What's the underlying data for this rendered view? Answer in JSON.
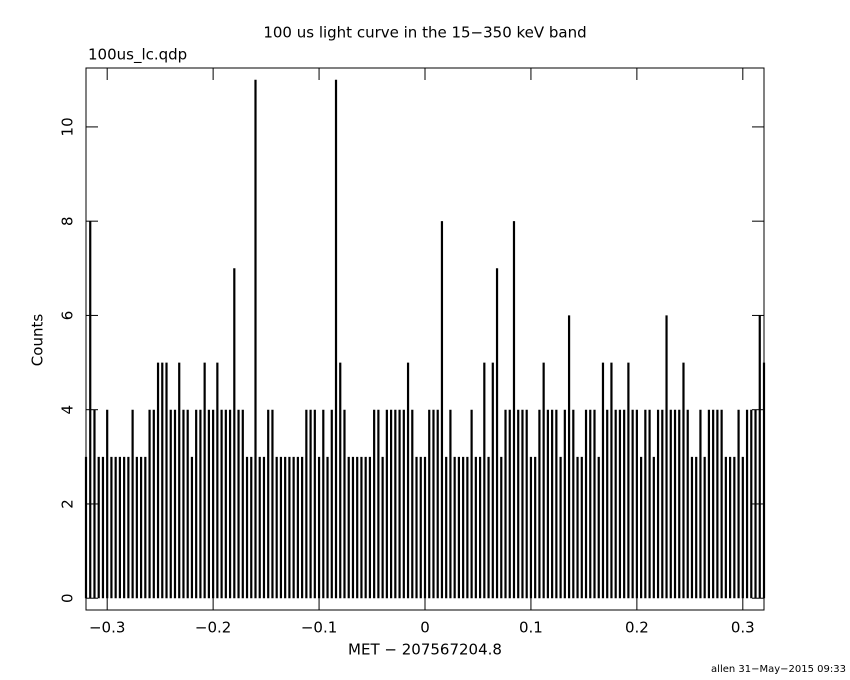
{
  "chart_data": {
    "type": "spikes",
    "title": "100 us light curve in the 15−350 keV band",
    "subtitle": "100us_lc.qdp",
    "x_label": "MET − 207567204.8",
    "y_label": "Counts",
    "annotation": "allen 31−May−2015 09:33",
    "color": "#000000",
    "xlim": [
      -0.32,
      0.32
    ],
    "ylim": [
      -0.25,
      11.25
    ],
    "xticks": [
      {
        "value": -0.3,
        "label": "−0.3"
      },
      {
        "value": -0.2,
        "label": "−0.2"
      },
      {
        "value": -0.1,
        "label": "−0.1"
      },
      0,
      0.1,
      0.2,
      0.3
    ],
    "yticks": [
      0,
      2,
      4,
      6,
      8,
      10
    ],
    "x": [
      -0.32,
      -0.316,
      -0.312,
      -0.308,
      -0.304,
      -0.3,
      -0.296,
      -0.292,
      -0.288,
      -0.284,
      -0.28,
      -0.276,
      -0.272,
      -0.268,
      -0.264,
      -0.26,
      -0.256,
      -0.252,
      -0.248,
      -0.244,
      -0.24,
      -0.236,
      -0.232,
      -0.228,
      -0.224,
      -0.22,
      -0.216,
      -0.212,
      -0.208,
      -0.204,
      -0.2,
      -0.196,
      -0.192,
      -0.188,
      -0.184,
      -0.18,
      -0.176,
      -0.172,
      -0.168,
      -0.164,
      -0.16,
      -0.156,
      -0.152,
      -0.148,
      -0.144,
      -0.14,
      -0.136,
      -0.132,
      -0.128,
      -0.124,
      -0.12,
      -0.116,
      -0.112,
      -0.108,
      -0.104,
      -0.1,
      -0.096,
      -0.092,
      -0.088,
      -0.084,
      -0.08,
      -0.076,
      -0.072,
      -0.068,
      -0.064,
      -0.06,
      -0.056,
      -0.052,
      -0.048,
      -0.044,
      -0.04,
      -0.036,
      -0.032,
      -0.028,
      -0.024,
      -0.02,
      -0.016,
      -0.012,
      -0.008,
      -0.004,
      0,
      0.004,
      0.008,
      0.012,
      0.016,
      0.02,
      0.024,
      0.028,
      0.032,
      0.036,
      0.04,
      0.044,
      0.048,
      0.052,
      0.056,
      0.06,
      0.064,
      0.068,
      0.072,
      0.076,
      0.08,
      0.084,
      0.088,
      0.092,
      0.096,
      0.1,
      0.104,
      0.108,
      0.112,
      0.116,
      0.12,
      0.124,
      0.128,
      0.132,
      0.136,
      0.14,
      0.144,
      0.148,
      0.152,
      0.156,
      0.16,
      0.164,
      0.168,
      0.172,
      0.176,
      0.18,
      0.184,
      0.188,
      0.192,
      0.196,
      0.2,
      0.204,
      0.208,
      0.212,
      0.216,
      0.22,
      0.224,
      0.228,
      0.232,
      0.236,
      0.24,
      0.244,
      0.248,
      0.252,
      0.256,
      0.26,
      0.264,
      0.268,
      0.272,
      0.276,
      0.28,
      0.284,
      0.288,
      0.292,
      0.296,
      0.3,
      0.304,
      0.308,
      0.312,
      0.316,
      0.32
    ],
    "values": [
      3,
      8,
      4,
      3,
      3,
      4,
      3,
      3,
      3,
      3,
      3,
      4,
      3,
      3,
      3,
      4,
      4,
      5,
      5,
      5,
      4,
      4,
      5,
      4,
      4,
      3,
      4,
      4,
      5,
      4,
      4,
      5,
      4,
      4,
      4,
      7,
      4,
      4,
      3,
      3,
      11,
      3,
      3,
      4,
      4,
      3,
      3,
      3,
      3,
      3,
      3,
      3,
      4,
      4,
      4,
      3,
      4,
      3,
      4,
      11,
      5,
      4,
      3,
      3,
      3,
      3,
      3,
      3,
      4,
      4,
      3,
      4,
      4,
      4,
      4,
      4,
      5,
      4,
      3,
      3,
      3,
      4,
      4,
      4,
      8,
      3,
      4,
      3,
      3,
      3,
      3,
      4,
      3,
      3,
      5,
      3,
      5,
      7,
      3,
      4,
      4,
      8,
      4,
      4,
      4,
      3,
      3,
      4,
      5,
      4,
      4,
      4,
      3,
      4,
      6,
      4,
      3,
      3,
      4,
      4,
      4,
      3,
      5,
      4,
      5,
      4,
      4,
      4,
      5,
      4,
      4,
      3,
      4,
      4,
      3,
      4,
      4,
      6,
      4,
      4,
      4,
      5,
      4,
      3,
      3,
      4,
      3,
      4,
      4,
      4,
      4,
      3,
      3,
      3,
      4,
      3,
      4,
      4,
      4,
      6,
      5
    ]
  }
}
